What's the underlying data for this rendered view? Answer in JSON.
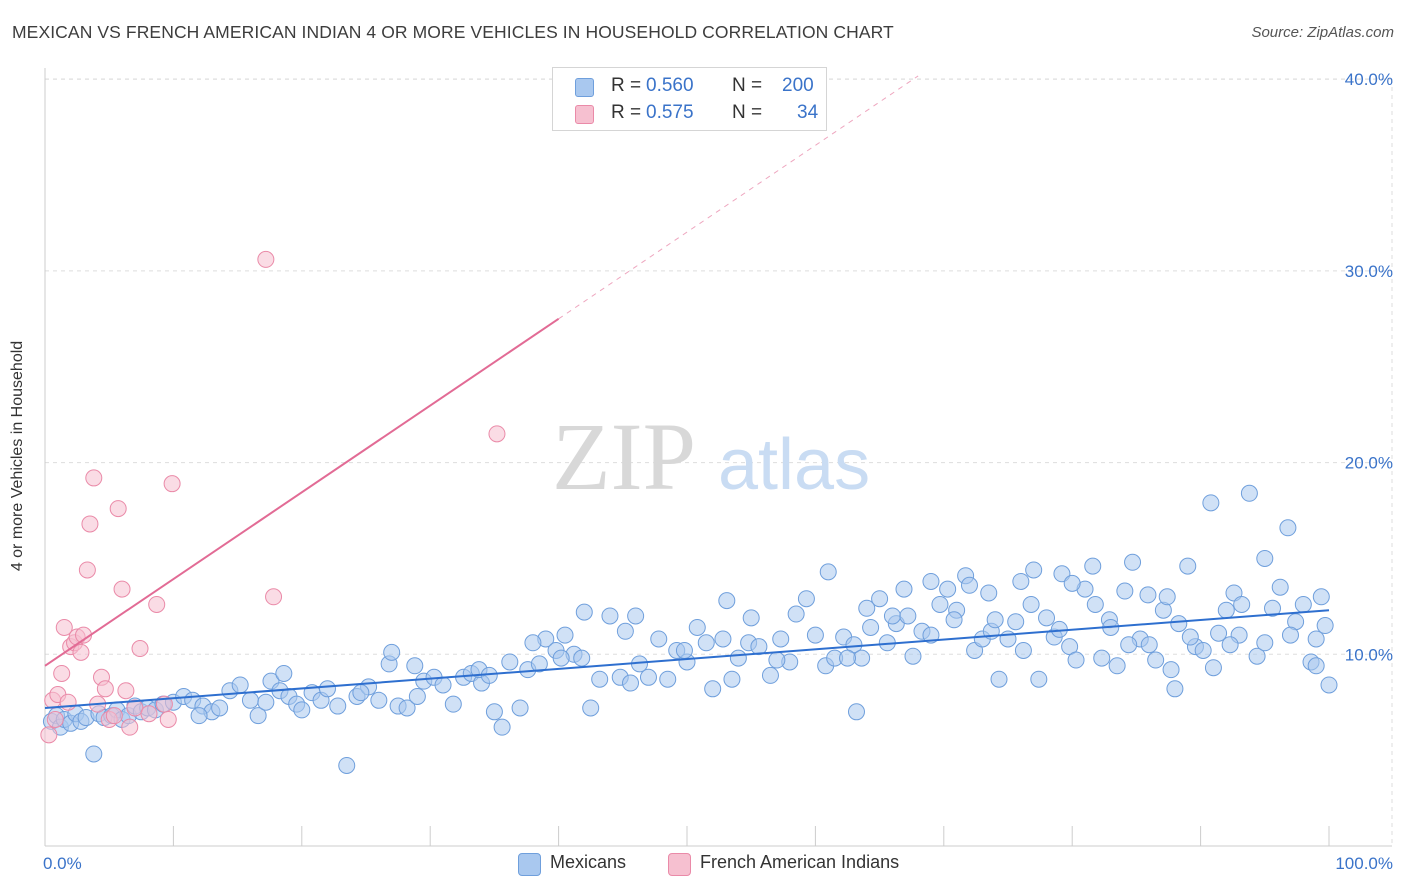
{
  "title": "MEXICAN VS FRENCH AMERICAN INDIAN 4 OR MORE VEHICLES IN HOUSEHOLD CORRELATION CHART",
  "source": "Source: ZipAtlas.com",
  "watermark": {
    "zip": "ZIP",
    "atlas": "atlas"
  },
  "legend": {
    "rows": [
      {
        "r_label": "R =",
        "r_value": "0.560",
        "n_label": "N =",
        "n_value": "200"
      },
      {
        "r_label": "R =",
        "r_value": "0.575",
        "n_label": "N =",
        "n_value": "34"
      }
    ]
  },
  "bottom_legend": {
    "mexicans": "Mexicans",
    "french": "French American Indians"
  },
  "colors": {
    "blue_fill": "#a9c8ef",
    "blue_stroke": "#6f9fdc",
    "blue_line": "#2e6fcf",
    "pink_fill": "#f6c0d0",
    "pink_stroke": "#ea8aa8",
    "pink_line": "#e26b95",
    "axis_text": "#3a73c9",
    "grid": "#dddddd"
  },
  "chart_data": {
    "type": "scatter",
    "title": "MEXICAN VS FRENCH AMERICAN INDIAN 4 OR MORE VEHICLES IN HOUSEHOLD CORRELATION CHART",
    "xlabel": "",
    "ylabel": "4 or more Vehicles in Household",
    "xlim": [
      0,
      100
    ],
    "ylim": [
      0,
      40
    ],
    "x_tick_labels": [
      {
        "value": 0,
        "label": "0.0%"
      },
      {
        "value": 100,
        "label": "100.0%"
      }
    ],
    "y_tick_labels": [
      {
        "value": 10,
        "label": "10.0%"
      },
      {
        "value": 20,
        "label": "20.0%"
      },
      {
        "value": 30,
        "label": "30.0%"
      },
      {
        "value": 40,
        "label": "40.0%"
      }
    ],
    "series": [
      {
        "name": "Mexicans",
        "r": 0.56,
        "n": 200,
        "trend": {
          "x0": 0,
          "y0": 7.2,
          "x1": 100,
          "y1": 12.3
        },
        "points": [
          [
            0.5,
            6.5
          ],
          [
            0.9,
            6.8
          ],
          [
            1.2,
            6.2
          ],
          [
            1.5,
            6.6
          ],
          [
            2.0,
            6.4
          ],
          [
            2.4,
            6.9
          ],
          [
            2.8,
            6.5
          ],
          [
            3.2,
            6.7
          ],
          [
            3.8,
            4.8
          ],
          [
            4.2,
            6.9
          ],
          [
            4.6,
            6.7
          ],
          [
            5.2,
            6.8
          ],
          [
            5.6,
            7.1
          ],
          [
            6.0,
            6.6
          ],
          [
            6.5,
            6.8
          ],
          [
            7.0,
            7.3
          ],
          [
            7.5,
            7.0
          ],
          [
            8.0,
            7.2
          ],
          [
            8.6,
            7.1
          ],
          [
            9.2,
            7.4
          ],
          [
            10.0,
            7.5
          ],
          [
            10.8,
            7.8
          ],
          [
            11.5,
            7.6
          ],
          [
            12.3,
            7.3
          ],
          [
            13.0,
            7.0
          ],
          [
            13.6,
            7.2
          ],
          [
            14.4,
            8.1
          ],
          [
            15.2,
            8.4
          ],
          [
            16.0,
            7.6
          ],
          [
            16.6,
            6.8
          ],
          [
            17.2,
            7.5
          ],
          [
            17.6,
            8.6
          ],
          [
            18.3,
            8.1
          ],
          [
            19.0,
            7.8
          ],
          [
            19.6,
            7.4
          ],
          [
            20.0,
            7.1
          ],
          [
            20.8,
            8.0
          ],
          [
            21.5,
            7.6
          ],
          [
            22.0,
            8.2
          ],
          [
            22.8,
            7.3
          ],
          [
            23.5,
            4.2
          ],
          [
            24.3,
            7.8
          ],
          [
            25.2,
            8.3
          ],
          [
            26.0,
            7.6
          ],
          [
            26.8,
            9.5
          ],
          [
            27.5,
            7.3
          ],
          [
            28.2,
            7.2
          ],
          [
            29.0,
            7.8
          ],
          [
            29.5,
            8.6
          ],
          [
            30.3,
            8.8
          ],
          [
            31.0,
            8.4
          ],
          [
            31.8,
            7.4
          ],
          [
            32.6,
            8.8
          ],
          [
            33.2,
            9.0
          ],
          [
            34.0,
            8.5
          ],
          [
            35.0,
            7.0
          ],
          [
            35.6,
            6.2
          ],
          [
            36.2,
            9.6
          ],
          [
            37.0,
            7.2
          ],
          [
            37.6,
            9.2
          ],
          [
            38.5,
            9.5
          ],
          [
            39.0,
            10.8
          ],
          [
            39.8,
            10.2
          ],
          [
            40.5,
            11.0
          ],
          [
            41.2,
            10.0
          ],
          [
            41.8,
            9.8
          ],
          [
            42.5,
            7.2
          ],
          [
            43.2,
            8.7
          ],
          [
            44.0,
            12.0
          ],
          [
            44.8,
            8.8
          ],
          [
            45.6,
            8.5
          ],
          [
            46.3,
            9.5
          ],
          [
            47.0,
            8.8
          ],
          [
            47.8,
            10.8
          ],
          [
            48.5,
            8.7
          ],
          [
            49.2,
            10.2
          ],
          [
            50.0,
            9.6
          ],
          [
            50.8,
            11.4
          ],
          [
            51.5,
            10.6
          ],
          [
            52.0,
            8.2
          ],
          [
            52.8,
            10.8
          ],
          [
            53.5,
            8.7
          ],
          [
            54.0,
            9.8
          ],
          [
            54.8,
            10.6
          ],
          [
            55.6,
            10.4
          ],
          [
            56.5,
            8.9
          ],
          [
            57.3,
            10.8
          ],
          [
            58.0,
            9.6
          ],
          [
            58.5,
            12.1
          ],
          [
            59.3,
            12.9
          ],
          [
            60.0,
            11.0
          ],
          [
            60.8,
            9.4
          ],
          [
            61.5,
            9.8
          ],
          [
            62.2,
            10.9
          ],
          [
            63.0,
            10.5
          ],
          [
            63.6,
            9.8
          ],
          [
            64.3,
            11.4
          ],
          [
            65.0,
            12.9
          ],
          [
            65.6,
            10.6
          ],
          [
            66.3,
            11.6
          ],
          [
            66.9,
            13.4
          ],
          [
            67.6,
            9.9
          ],
          [
            68.3,
            11.2
          ],
          [
            69.0,
            11.0
          ],
          [
            69.7,
            12.6
          ],
          [
            70.3,
            13.4
          ],
          [
            71.0,
            12.3
          ],
          [
            71.7,
            14.1
          ],
          [
            72.4,
            10.2
          ],
          [
            73.0,
            10.8
          ],
          [
            73.7,
            11.2
          ],
          [
            74.3,
            8.7
          ],
          [
            75.0,
            10.8
          ],
          [
            75.6,
            11.7
          ],
          [
            76.2,
            10.2
          ],
          [
            76.8,
            12.6
          ],
          [
            77.4,
            8.7
          ],
          [
            78.0,
            11.9
          ],
          [
            78.6,
            10.9
          ],
          [
            79.2,
            14.2
          ],
          [
            79.8,
            10.4
          ],
          [
            80.3,
            9.7
          ],
          [
            81.0,
            13.4
          ],
          [
            81.6,
            14.6
          ],
          [
            82.3,
            9.8
          ],
          [
            82.9,
            11.8
          ],
          [
            83.5,
            9.4
          ],
          [
            84.1,
            13.3
          ],
          [
            84.7,
            14.8
          ],
          [
            85.3,
            10.8
          ],
          [
            85.9,
            13.1
          ],
          [
            86.5,
            9.7
          ],
          [
            87.1,
            12.3
          ],
          [
            87.7,
            9.2
          ],
          [
            88.3,
            11.6
          ],
          [
            89.0,
            14.6
          ],
          [
            89.6,
            10.4
          ],
          [
            90.2,
            10.2
          ],
          [
            90.8,
            17.9
          ],
          [
            91.4,
            11.1
          ],
          [
            92.0,
            12.3
          ],
          [
            92.6,
            13.2
          ],
          [
            93.2,
            12.6
          ],
          [
            93.8,
            18.4
          ],
          [
            94.4,
            9.9
          ],
          [
            95.0,
            15.0
          ],
          [
            95.6,
            12.4
          ],
          [
            96.2,
            13.5
          ],
          [
            96.8,
            16.6
          ],
          [
            97.4,
            11.7
          ],
          [
            98.0,
            12.6
          ],
          [
            98.6,
            9.6
          ],
          [
            99.0,
            10.8
          ],
          [
            99.4,
            13.0
          ],
          [
            99.7,
            11.5
          ],
          [
            100.0,
            8.4
          ],
          [
            42.0,
            12.2
          ],
          [
            46.0,
            12.0
          ],
          [
            33.8,
            9.2
          ],
          [
            38.0,
            10.6
          ],
          [
            63.2,
            7.0
          ],
          [
            27.0,
            10.1
          ],
          [
            55.0,
            11.9
          ],
          [
            61.0,
            14.3
          ],
          [
            64.0,
            12.4
          ],
          [
            66.0,
            12.0
          ],
          [
            69.0,
            13.8
          ],
          [
            72.0,
            13.6
          ],
          [
            74.0,
            11.8
          ],
          [
            77.0,
            14.4
          ],
          [
            80.0,
            13.7
          ],
          [
            83.0,
            11.4
          ],
          [
            86.0,
            10.5
          ],
          [
            88.0,
            8.2
          ],
          [
            91.0,
            9.3
          ],
          [
            93.0,
            11.0
          ],
          [
            95.0,
            10.6
          ],
          [
            97.0,
            11.0
          ],
          [
            99.0,
            9.4
          ],
          [
            12.0,
            6.8
          ],
          [
            18.6,
            9.0
          ],
          [
            24.6,
            8.0
          ],
          [
            28.8,
            9.4
          ],
          [
            34.6,
            8.9
          ],
          [
            40.2,
            9.8
          ],
          [
            45.2,
            11.2
          ],
          [
            49.8,
            10.2
          ],
          [
            53.1,
            12.8
          ],
          [
            57.0,
            9.7
          ],
          [
            62.5,
            9.8
          ],
          [
            67.2,
            12.0
          ],
          [
            70.8,
            11.8
          ],
          [
            73.5,
            13.2
          ],
          [
            76.0,
            13.8
          ],
          [
            79.0,
            11.3
          ],
          [
            81.8,
            12.6
          ],
          [
            84.4,
            10.5
          ],
          [
            87.4,
            13.0
          ],
          [
            89.2,
            10.9
          ],
          [
            92.3,
            10.5
          ]
        ]
      },
      {
        "name": "French American Indians",
        "r": 0.575,
        "n": 34,
        "trend": {
          "x0": 0,
          "y0": 9.4,
          "x1": 40,
          "y1": 27.5
        },
        "points": [
          [
            0.3,
            5.8
          ],
          [
            0.6,
            7.6
          ],
          [
            0.8,
            6.6
          ],
          [
            1.0,
            7.9
          ],
          [
            1.3,
            9.0
          ],
          [
            1.5,
            11.4
          ],
          [
            1.8,
            7.5
          ],
          [
            2.0,
            10.4
          ],
          [
            2.3,
            10.6
          ],
          [
            2.5,
            10.9
          ],
          [
            2.8,
            10.1
          ],
          [
            3.0,
            11.0
          ],
          [
            3.3,
            14.4
          ],
          [
            3.5,
            16.8
          ],
          [
            3.8,
            19.2
          ],
          [
            4.1,
            7.4
          ],
          [
            4.4,
            8.8
          ],
          [
            4.7,
            8.2
          ],
          [
            5.0,
            6.6
          ],
          [
            5.4,
            6.8
          ],
          [
            5.7,
            17.6
          ],
          [
            6.0,
            13.4
          ],
          [
            6.3,
            8.1
          ],
          [
            6.6,
            6.2
          ],
          [
            7.0,
            7.2
          ],
          [
            7.4,
            10.3
          ],
          [
            8.1,
            6.9
          ],
          [
            8.7,
            12.6
          ],
          [
            9.3,
            7.4
          ],
          [
            9.6,
            6.6
          ],
          [
            9.9,
            18.9
          ],
          [
            17.2,
            30.6
          ],
          [
            17.8,
            13.0
          ],
          [
            35.2,
            21.5
          ]
        ]
      }
    ]
  }
}
